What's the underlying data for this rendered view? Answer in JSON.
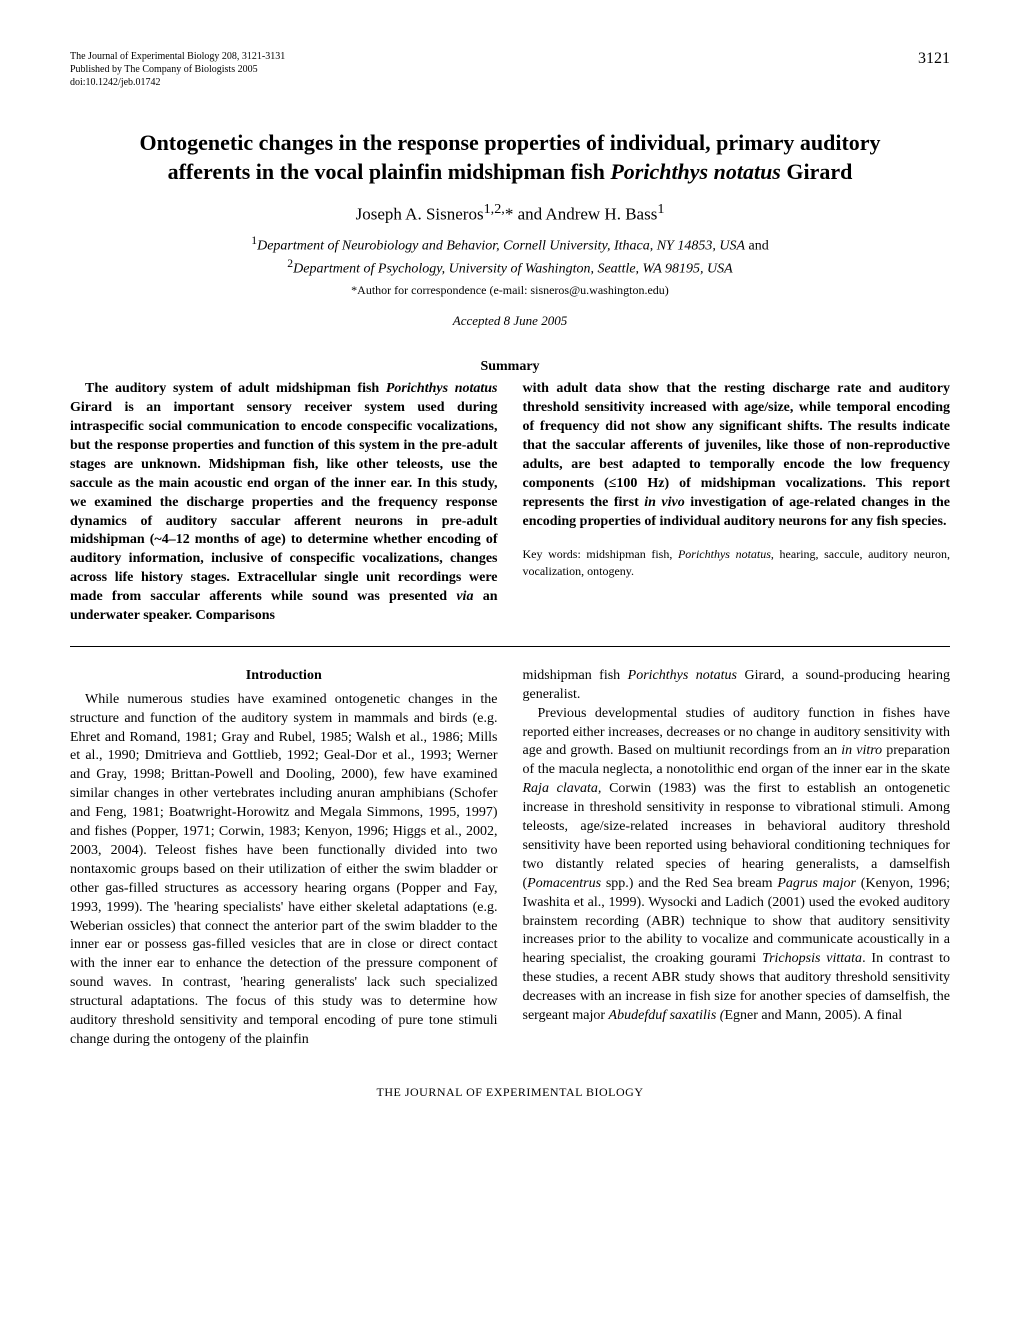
{
  "header": {
    "journal_line1": "The Journal of Experimental Biology 208, 3121-3131",
    "journal_line2": "Published by The Company of Biologists 2005",
    "journal_line3": "doi:10.1242/jeb.01742",
    "page_number": "3121"
  },
  "title_line1": "Ontogenetic changes in the response properties of individual, primary auditory",
  "title_line2_prefix": "afferents in the vocal plainfin midshipman fish ",
  "title_line2_italic": "Porichthys notatus",
  "title_line2_suffix": " Girard",
  "authors": {
    "author1": "Joseph A. Sisneros",
    "author1_sup": "1,2,",
    "author1_ast": "*",
    "conjunction": " and ",
    "author2": "Andrew H. Bass",
    "author2_sup": "1"
  },
  "affiliations": {
    "sup1": "1",
    "aff1": "Department of Neurobiology and Behavior, Cornell University, Ithaca, NY 14853, USA",
    "and": " and",
    "sup2": "2",
    "aff2": "Department of Psychology, University of Washington, Seattle, WA 98195, USA"
  },
  "correspondence": "*Author for correspondence (e-mail: sisneros@u.washington.edu)",
  "accepted": "Accepted 8 June 2005",
  "summary_heading": "Summary",
  "summary_left_part1": "The auditory system of adult midshipman fish ",
  "summary_left_italic1": "Porichthys notatus",
  "summary_left_part2": " Girard is an important sensory receiver system used during intraspecific social communication to encode conspecific vocalizations, but the response properties and function of this system in the pre-adult stages are unknown. Midshipman fish, like other teleosts, use the saccule as the main acoustic end organ of the inner ear. In this study, we examined the discharge properties and the frequency response dynamics of auditory saccular afferent neurons in pre-adult midshipman (~4–12 months of age) to determine whether encoding of auditory information, inclusive of conspecific vocalizations, changes across life history stages. Extracellular single unit recordings were made from saccular afferents while sound was presented ",
  "summary_left_italic2": "via",
  "summary_left_part3": " an underwater speaker. Comparisons",
  "summary_right_part1": "with adult data show that the resting discharge rate and auditory threshold sensitivity increased with age/size, while temporal encoding of frequency did not show any significant shifts. The results indicate that the saccular afferents of juveniles, like those of non-reproductive adults, are best adapted to temporally encode the low frequency components (≤100 Hz) of midshipman vocalizations. This report represents the first ",
  "summary_right_italic1": "in vivo",
  "summary_right_part2": " investigation of age-related changes in the encoding properties of individual auditory neurons for any fish species.",
  "keywords_prefix": "Key words: midshipman fish, ",
  "keywords_italic": "Porichthys notatus",
  "keywords_suffix": ", hearing, saccule, auditory neuron, vocalization, ontogeny.",
  "intro_heading": "Introduction",
  "intro_left_para1": "While numerous studies have examined ontogenetic changes in the structure and function of the auditory system in mammals and birds (e.g. Ehret and Romand, 1981; Gray and Rubel, 1985; Walsh et al., 1986; Mills et al., 1990; Dmitrieva and Gottlieb, 1992; Geal-Dor et al., 1993; Werner and Gray, 1998; Brittan-Powell and Dooling, 2000), few have examined similar changes in other vertebrates including anuran amphibians (Schofer and Feng, 1981; Boatwright-Horowitz and Megala Simmons, 1995, 1997) and fishes (Popper, 1971; Corwin, 1983; Kenyon, 1996; Higgs et al., 2002, 2003, 2004). Teleost fishes have been functionally divided into two nontaxomic groups based on their utilization of either the swim bladder or other gas-filled structures as accessory hearing organs (Popper and Fay, 1993, 1999). The 'hearing specialists' have either skeletal adaptations (e.g. Weberian ossicles) that connect the anterior part of the swim bladder to the inner ear or possess gas-filled vesicles that are in close or direct contact with the inner ear to enhance the detection of the pressure component of sound waves. In contrast, 'hearing generalists' lack such specialized structural adaptations. The focus of this study was to determine how auditory threshold sensitivity and temporal encoding of pure tone stimuli change during the ontogeny of the plainfin",
  "intro_right_para1_prefix": "midshipman fish ",
  "intro_right_para1_italic": "Porichthys notatus",
  "intro_right_para1_suffix": " Girard, a sound-producing hearing generalist.",
  "intro_right_para2_part1": "Previous developmental studies of auditory function in fishes have reported either increases, decreases or no change in auditory sensitivity with age and growth. Based on multiunit recordings from an ",
  "intro_right_para2_italic1": "in vitro",
  "intro_right_para2_part2": " preparation of the macula neglecta, a nonotolithic end organ of the inner ear in the skate ",
  "intro_right_para2_italic2": "Raja clavata,",
  "intro_right_para2_part3": " Corwin (1983) was the first to establish an ontogenetic increase in threshold sensitivity in response to vibrational stimuli. Among teleosts, age/size-related increases in behavioral auditory threshold sensitivity have been reported using behavioral conditioning techniques for two distantly related species of hearing generalists, a damselfish (",
  "intro_right_para2_italic3": "Pomacentrus",
  "intro_right_para2_part4": " spp.) and the Red Sea bream ",
  "intro_right_para2_italic4": "Pagrus major",
  "intro_right_para2_part5": " (Kenyon, 1996; Iwashita et al., 1999). Wysocki and Ladich (2001) used the evoked auditory brainstem recording (ABR) technique to show that auditory sensitivity increases prior to the ability to vocalize and communicate acoustically in a hearing specialist, the croaking gourami ",
  "intro_right_para2_italic5": "Trichopsis vittata",
  "intro_right_para2_part6": ". In contrast to these studies, a recent ABR study shows that auditory threshold sensitivity decreases with an increase in fish size for another species of damselfish, the sergeant major ",
  "intro_right_para2_italic6": "Abudefduf saxatilis (",
  "intro_right_para2_part7": "Egner and Mann, 2005). A final",
  "footer": "THE JOURNAL OF EXPERIMENTAL BIOLOGY"
}
